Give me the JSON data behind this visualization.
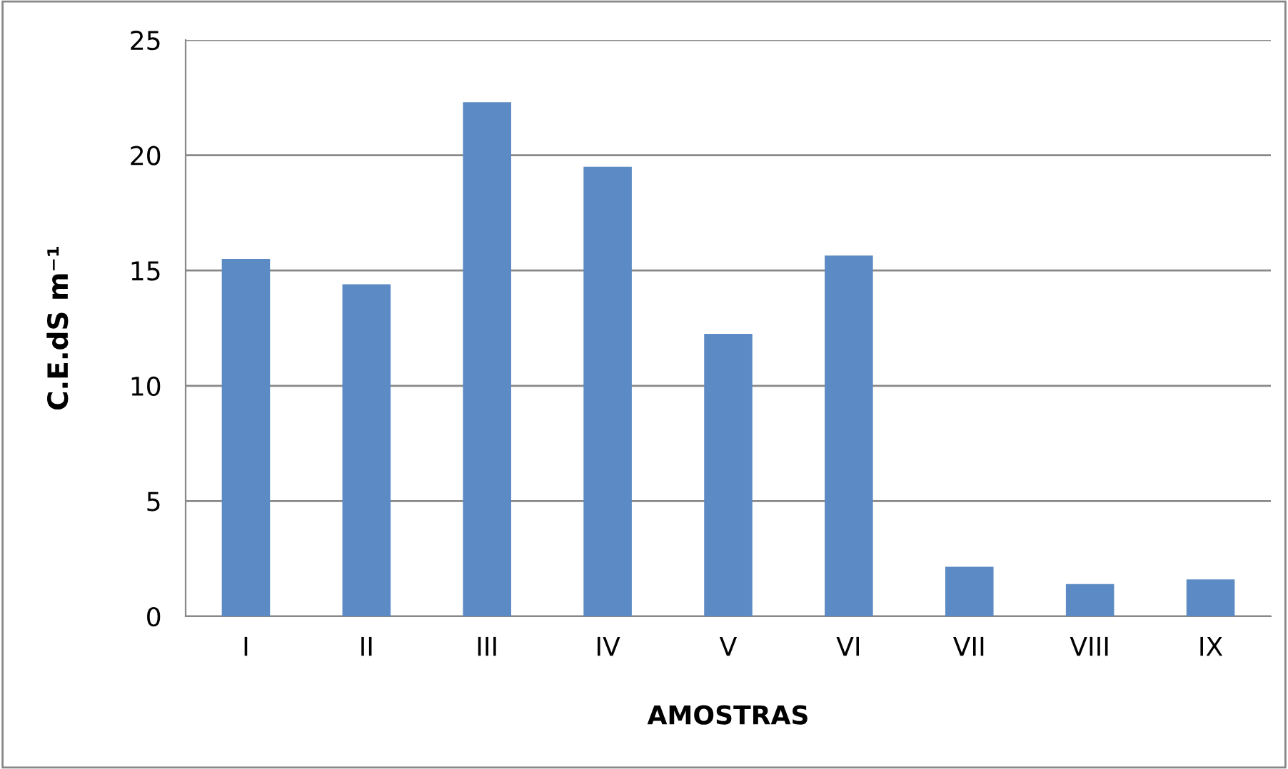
{
  "chart_data": {
    "type": "bar",
    "xlabel": "AMOSTRAS",
    "ylabel": "C.E.dS m⁻¹",
    "categories": [
      "I",
      "II",
      "III",
      "IV",
      "V",
      "VI",
      "VII",
      "VIII",
      "IX"
    ],
    "values": [
      15.5,
      14.4,
      22.3,
      19.5,
      12.25,
      15.65,
      2.15,
      1.4,
      1.6
    ],
    "color": "#5b8ac4",
    "ylim": [
      0,
      25
    ],
    "yticks": [
      0,
      5,
      10,
      15,
      20,
      25
    ],
    "grid": "y"
  }
}
